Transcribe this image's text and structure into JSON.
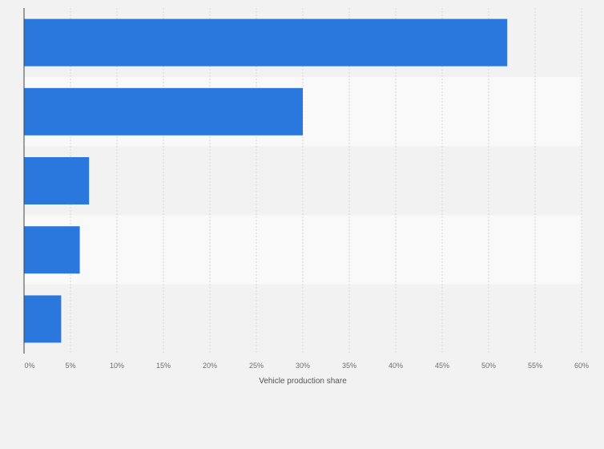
{
  "chart_data": {
    "type": "bar",
    "orientation": "horizontal",
    "categories": [
      "",
      "",
      "",
      "",
      ""
    ],
    "values": [
      52,
      30,
      7,
      6,
      4
    ],
    "title": "",
    "xlabel": "Vehicle production share",
    "ylabel": "",
    "xlim": [
      0,
      60
    ],
    "x_ticks": [
      0,
      5,
      10,
      15,
      20,
      25,
      30,
      35,
      40,
      45,
      50,
      55,
      60
    ],
    "tick_labels": [
      "0%",
      "5%",
      "10%",
      "15%",
      "20%",
      "25%",
      "30%",
      "35%",
      "40%",
      "45%",
      "50%",
      "55%",
      "60%"
    ],
    "grid": "vertical dashed",
    "legend": "none",
    "colors": {
      "bar": "#2a77de",
      "band_dark": "#f2f2f2",
      "band_light": "#f9f9f9",
      "grid": "#d4d4d4",
      "axis": "#444444"
    }
  }
}
